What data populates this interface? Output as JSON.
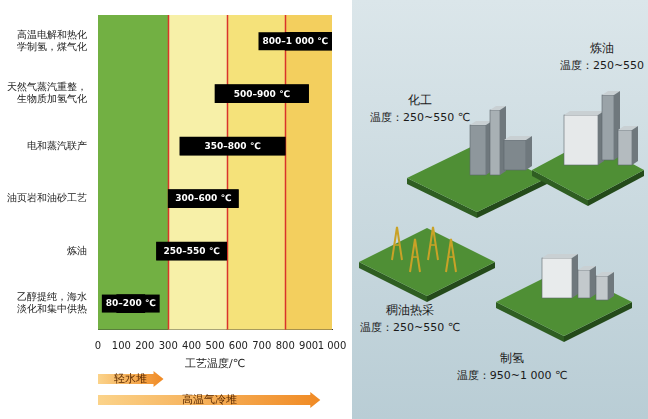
{
  "chart_data": {
    "type": "bar",
    "orientation": "horizontal",
    "categories": [
      "高温电解和热化学制氢，煤气化",
      "天然气蒸汽重整，生物质加氢气化",
      "电和蒸汽联产",
      "油页岩和油砂工艺",
      "炼油",
      "乙醇提纯，海水淡化和集中供热"
    ],
    "values": [
      [
        800,
        1000
      ],
      [
        500,
        900
      ],
      [
        350,
        800
      ],
      [
        300,
        600
      ],
      [
        250,
        550
      ],
      [
        80,
        200
      ]
    ],
    "value_labels": [
      "800–1 000 ℃",
      "500–900 ℃",
      "350–800 ℃",
      "300–600 ℃",
      "250–550 ℃",
      "80–200 ℃"
    ],
    "data_labels": true,
    "color": "#000000",
    "xlabel": "工艺温度/℃",
    "xlim": [
      0,
      1000
    ],
    "xticks": [
      0,
      100,
      200,
      300,
      400,
      500,
      600,
      700,
      800,
      900,
      {
        "value": 1000,
        "label": "1 000"
      }
    ],
    "grid": false,
    "bands": [
      {
        "range": [
          0,
          300
        ],
        "color": "#72b043"
      },
      {
        "range": [
          300,
          550
        ],
        "color": "#f7f0a8"
      },
      {
        "range": [
          550,
          800
        ],
        "color": "#f5e27a"
      },
      {
        "range": [
          800,
          1000
        ],
        "color": "#f3cf5e"
      }
    ],
    "arrows": [
      {
        "label": "轻水堆",
        "range": [
          0,
          280
        ]
      },
      {
        "label": "高温气冷堆",
        "range": [
          0,
          950
        ]
      }
    ]
  },
  "illustration": {
    "items": [
      {
        "name": "化工",
        "label": "温度：250~550 ℃"
      },
      {
        "name": "炼油",
        "label": "温度：250~550"
      },
      {
        "name": "稠油热采",
        "label": "温度：250~550 ℃"
      },
      {
        "name": "制氢",
        "label": "温度：950~1 000 ℃"
      }
    ]
  }
}
